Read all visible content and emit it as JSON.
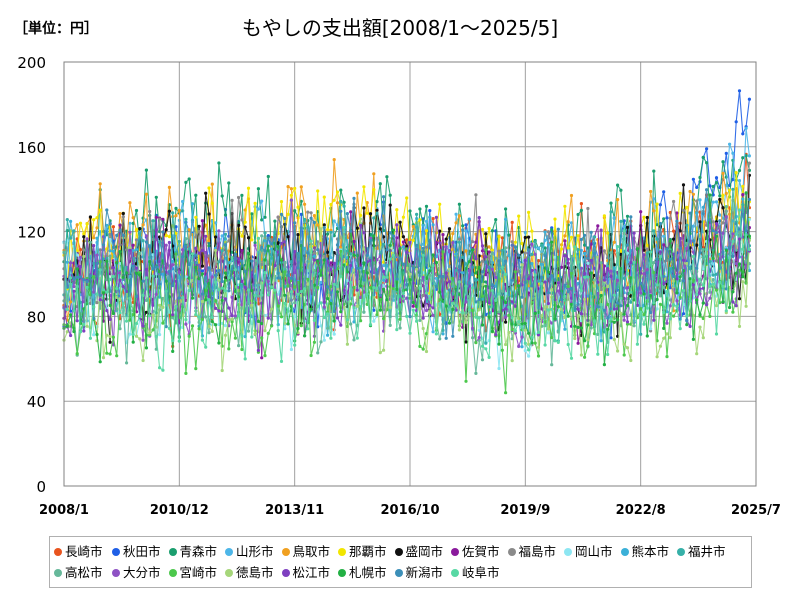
{
  "header": {
    "unit": "［単位：円］",
    "title": "もやしの支出額[2008/1～2025/5]"
  },
  "chart_data": {
    "type": "line",
    "title": "もやしの支出額[2008/1～2025/5]",
    "unit": "［単位：円］",
    "xlabel": "",
    "ylabel": "",
    "x_ticks": [
      "2008/1",
      "2010/12",
      "2013/11",
      "2016/10",
      "2019/9",
      "2022/8",
      "2025/7"
    ],
    "y_ticks": [
      0,
      40,
      80,
      120,
      160,
      200
    ],
    "ylim": [
      0,
      200
    ],
    "grid": true,
    "legend_position": "bottom",
    "x_range": [
      "2008/1",
      "2025/5"
    ],
    "series": [
      {
        "name": "長崎市",
        "color": "#e8541e",
        "anchors": [
          92,
          98,
          95,
          100,
          96,
          105,
          98,
          102,
          110,
          128
        ]
      },
      {
        "name": "秋田市",
        "color": "#1f5fe6",
        "anchors": [
          88,
          108,
          112,
          100,
          104,
          105,
          98,
          102,
          108,
          175
        ]
      },
      {
        "name": "青森市",
        "color": "#1a9e6e",
        "anchors": [
          100,
          125,
          128,
          118,
          120,
          110,
          108,
          112,
          118,
          150
        ]
      },
      {
        "name": "山形市",
        "color": "#4db6e8",
        "anchors": [
          95,
          110,
          108,
          112,
          108,
          104,
          100,
          105,
          110,
          150
        ]
      },
      {
        "name": "鳥取市",
        "color": "#f0a020",
        "anchors": [
          110,
          118,
          112,
          120,
          125,
          108,
          102,
          108,
          110,
          130
        ]
      },
      {
        "name": "那覇市",
        "color": "#f2e600",
        "anchors": [
          118,
          115,
          108,
          122,
          128,
          110,
          104,
          106,
          112,
          140
        ]
      },
      {
        "name": "盛岡市",
        "color": "#111111",
        "anchors": [
          96,
          104,
          108,
          100,
          112,
          98,
          96,
          102,
          112,
          122
        ]
      },
      {
        "name": "佐賀市",
        "color": "#8a1a9c",
        "anchors": [
          100,
          104,
          98,
          100,
          106,
          96,
          94,
          98,
          102,
          115
        ]
      },
      {
        "name": "福島市",
        "color": "#8a8a8a",
        "anchors": [
          100,
          108,
          104,
          110,
          106,
          102,
          98,
          100,
          106,
          125
        ]
      },
      {
        "name": "岡山市",
        "color": "#8de6f2",
        "anchors": [
          96,
          90,
          86,
          92,
          94,
          86,
          82,
          86,
          92,
          110
        ]
      },
      {
        "name": "熊本市",
        "color": "#3bb0d8",
        "anchors": [
          104,
          100,
          96,
          100,
          104,
          98,
          94,
          96,
          100,
          118
        ]
      },
      {
        "name": "福井市",
        "color": "#36b0a8",
        "anchors": [
          98,
          104,
          100,
          102,
          106,
          98,
          92,
          96,
          102,
          118
        ]
      },
      {
        "name": "高松市",
        "color": "#66b89a",
        "anchors": [
          86,
          90,
          88,
          92,
          94,
          88,
          84,
          86,
          92,
          108
        ]
      },
      {
        "name": "大分市",
        "color": "#8e52c4",
        "anchors": [
          92,
          96,
          92,
          96,
          98,
          92,
          88,
          92,
          96,
          110
        ]
      },
      {
        "name": "宮崎市",
        "color": "#4cc84c",
        "anchors": [
          82,
          84,
          80,
          86,
          90,
          84,
          78,
          80,
          84,
          100
        ]
      },
      {
        "name": "徳島市",
        "color": "#a6d67a",
        "anchors": [
          86,
          88,
          84,
          88,
          92,
          86,
          82,
          84,
          88,
          104
        ]
      },
      {
        "name": "松江市",
        "color": "#7e3fc0",
        "anchors": [
          92,
          98,
          94,
          98,
          102,
          96,
          92,
          94,
          98,
          112
        ]
      },
      {
        "name": "札幌市",
        "color": "#22b044",
        "anchors": [
          88,
          92,
          90,
          94,
          96,
          90,
          86,
          88,
          94,
          110
        ]
      },
      {
        "name": "新潟市",
        "color": "#3c8fb8",
        "anchors": [
          100,
          104,
          100,
          104,
          106,
          100,
          96,
          98,
          104,
          120
        ]
      },
      {
        "name": "岐阜市",
        "color": "#58d8a4",
        "anchors": [
          84,
          88,
          86,
          90,
          92,
          86,
          82,
          84,
          90,
          106
        ]
      }
    ]
  }
}
